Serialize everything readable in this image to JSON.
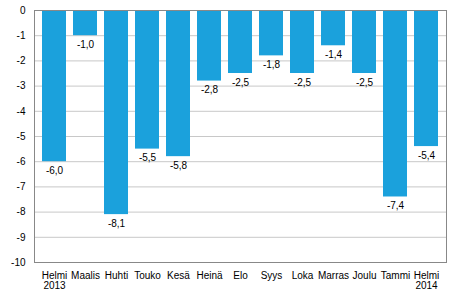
{
  "chart_data": {
    "type": "bar",
    "categories": [
      "Helmi\n2013",
      "Maalis",
      "Huhti",
      "Touko",
      "Kesä",
      "Heinä",
      "Elo",
      "Syys",
      "Loka",
      "Marras",
      "Joulu",
      "Tammi",
      "Helmi\n2014"
    ],
    "values": [
      -6.0,
      -1.0,
      -8.1,
      -5.5,
      -5.8,
      -2.8,
      -2.5,
      -1.8,
      -2.5,
      -1.4,
      -2.5,
      -7.4,
      -5.4
    ],
    "value_labels": [
      "-6,0",
      "-1,0",
      "-8,1",
      "-5,5",
      "-5,8",
      "-2,8",
      "-2,5",
      "-1,8",
      "-2,5",
      "-1,4",
      "-2,5",
      "-7,4",
      "-5,4"
    ],
    "color": "#1ba1dc",
    "ylim": [
      -10,
      0
    ],
    "yticks": [
      -10,
      -9,
      -8,
      -7,
      -6,
      -5,
      -4,
      -3,
      -2,
      -1,
      0
    ],
    "grid": true,
    "data_labels": true
  }
}
